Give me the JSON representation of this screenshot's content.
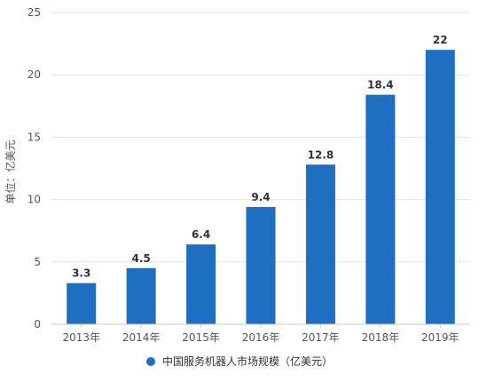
{
  "chart_data": {
    "type": "bar",
    "categories": [
      "2013年",
      "2014年",
      "2015年",
      "2016年",
      "2017年",
      "2018年",
      "2019年"
    ],
    "series": [
      {
        "name": "中国服务机器人市场规模（亿美元）",
        "values": [
          3.3,
          4.5,
          6.4,
          9.4,
          12.8,
          18.4,
          22
        ]
      }
    ],
    "data_labels": [
      "3.3",
      "4.5",
      "6.4",
      "9.4",
      "12.8",
      "18.4",
      "22"
    ],
    "ylabel": "单位：亿美元",
    "ylim": [
      0,
      25
    ],
    "yticks": [
      0,
      5,
      10,
      15,
      20,
      25
    ],
    "grid": true,
    "legend_position": "bottom",
    "bar_color": "#1e6fc1",
    "grid_color": "#e3e3e3"
  }
}
